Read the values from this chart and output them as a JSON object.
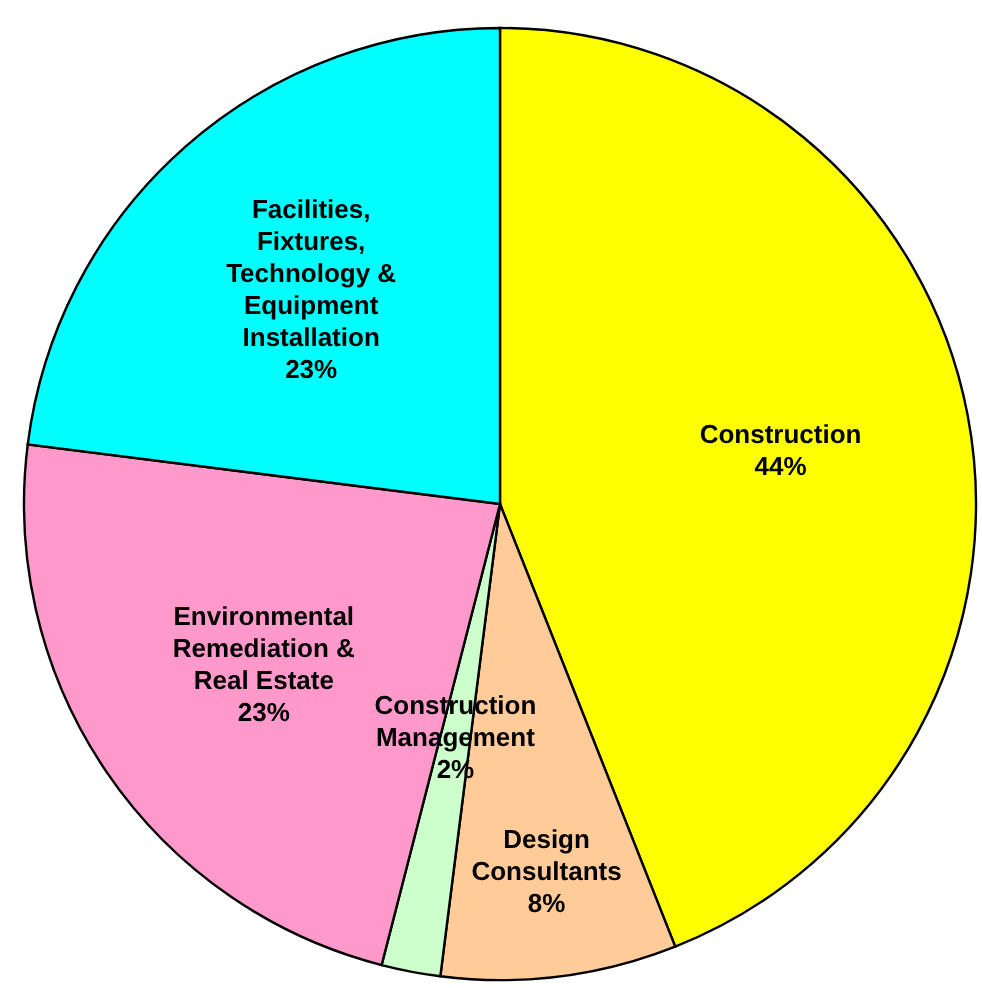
{
  "chart_data": {
    "type": "pie",
    "categories": [
      "Construction",
      "Design Consultants",
      "Construction Management",
      "Environmental Remediation & Real Estate",
      "Facilities, Fixtures, Technology & Equipment Installation"
    ],
    "values": [
      44,
      8,
      2,
      23,
      23
    ],
    "colors": [
      "#ffff00",
      "#ffcc99",
      "#ccffcc",
      "#ff99cc",
      "#00ffff"
    ],
    "value_labels": [
      "44%",
      "8%",
      "2%",
      "23%",
      "23%"
    ]
  }
}
